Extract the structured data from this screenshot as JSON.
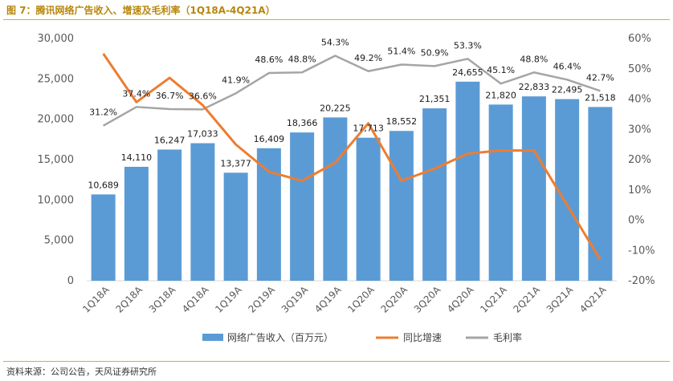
{
  "header": {
    "title": "图 7：腾讯网络广告收入、增速及毛利率（1Q18A-4Q21A）"
  },
  "footer": {
    "source": "资料来源：公司公告，天风证券研究所"
  },
  "colors": {
    "bar": "#5b9bd5",
    "growth": "#ed7d31",
    "margin": "#a5a5a5",
    "title": "#b8860b"
  },
  "chart_data": {
    "type": "bar",
    "title": "腾讯网络广告收入、增速及毛利率（1Q18A-4Q21A）",
    "categories": [
      "1Q18A",
      "2Q18A",
      "3Q18A",
      "4Q18A",
      "1Q19A",
      "2Q19A",
      "3Q19A",
      "4Q19A",
      "1Q20A",
      "2Q20A",
      "3Q20A",
      "4Q20A",
      "1Q21A",
      "2Q21A",
      "3Q21A",
      "4Q21A"
    ],
    "y_left": {
      "min": 0,
      "max": 30000,
      "ticks": [
        "0",
        "5,000",
        "10,000",
        "15,000",
        "20,000",
        "25,000",
        "30,000"
      ]
    },
    "y_right": {
      "min": -20,
      "max": 60,
      "ticks": [
        "-20%",
        "-10%",
        "0%",
        "10%",
        "20%",
        "30%",
        "40%",
        "50%",
        "60%"
      ]
    },
    "series": [
      {
        "name": "网络广告收入（百万元）",
        "type": "bar",
        "axis": "left",
        "values": [
          10689,
          14110,
          16247,
          17033,
          13377,
          16409,
          18366,
          20225,
          17713,
          18552,
          21351,
          24655,
          21820,
          22833,
          22495,
          21518
        ],
        "labels": [
          "10,689",
          "14,110",
          "16,247",
          "17,033",
          "13,377",
          "16,409",
          "18,366",
          "20,225",
          "17,713",
          "18,552",
          "21,351",
          "24,655",
          "21,820",
          "22,833",
          "22,495",
          "21,518"
        ]
      },
      {
        "name": "同比增速",
        "type": "line",
        "axis": "right",
        "values": [
          55,
          39,
          47,
          38,
          25,
          16,
          13,
          19,
          32,
          13,
          17,
          22,
          23,
          23,
          5,
          -13
        ]
      },
      {
        "name": "毛利率",
        "type": "line",
        "axis": "right",
        "values": [
          31.2,
          37.4,
          36.7,
          36.6,
          41.9,
          48.6,
          48.8,
          54.3,
          49.2,
          51.4,
          50.9,
          53.3,
          45.1,
          48.8,
          46.4,
          42.7
        ],
        "labels": [
          "31.2%",
          "37.4%",
          "36.7%",
          "36.6%",
          "41.9%",
          "48.6%",
          "48.8%",
          "54.3%",
          "49.2%",
          "51.4%",
          "50.9%",
          "53.3%",
          "45.1%",
          "48.8%",
          "46.4%",
          "42.7%"
        ]
      }
    ],
    "legend": [
      "网络广告收入（百万元）",
      "同比增速",
      "毛利率"
    ],
    "legend_position": "bottom"
  }
}
